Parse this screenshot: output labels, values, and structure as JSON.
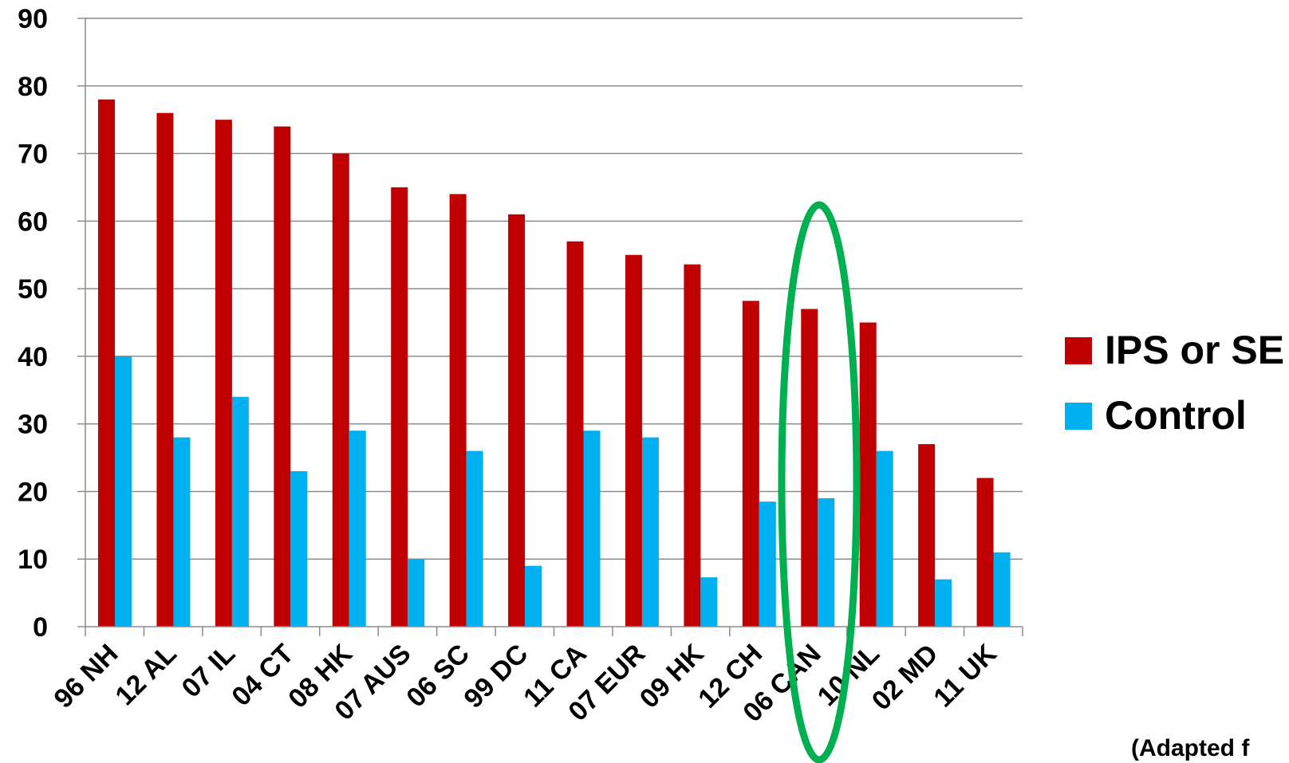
{
  "chart_data": {
    "type": "bar",
    "categories": [
      "96 NH",
      "12 AL",
      "07 IL",
      "04 CT",
      "08 HK",
      "07 AUS",
      "06 SC",
      "99 DC",
      "11 CA",
      "07 EUR",
      "09 HK",
      "12 CH",
      "06 CAN",
      "10 NL",
      "02 MD",
      "11 UK"
    ],
    "series": [
      {
        "name": "IPS or SE",
        "color": "#C00000",
        "values": [
          78,
          76,
          75,
          74,
          70,
          65,
          64,
          61,
          57,
          55,
          53.6,
          48.2,
          47,
          45,
          27,
          22
        ]
      },
      {
        "name": "Control",
        "color": "#00B0F0",
        "values": [
          40,
          28,
          34,
          23,
          29,
          10,
          26,
          9,
          29,
          28,
          7.3,
          18.5,
          19,
          26,
          7,
          11
        ]
      }
    ],
    "ylim": [
      0,
      90
    ],
    "yticks": [
      0,
      10,
      20,
      30,
      40,
      50,
      60,
      70,
      80,
      90
    ],
    "grid": true,
    "legend_position": "right",
    "highlight": {
      "category": "06 CAN",
      "shape": "ellipse",
      "color": "#00B050"
    },
    "title": "",
    "xlabel": "",
    "ylabel": "",
    "annotations": [
      "(Adapted f"
    ]
  }
}
